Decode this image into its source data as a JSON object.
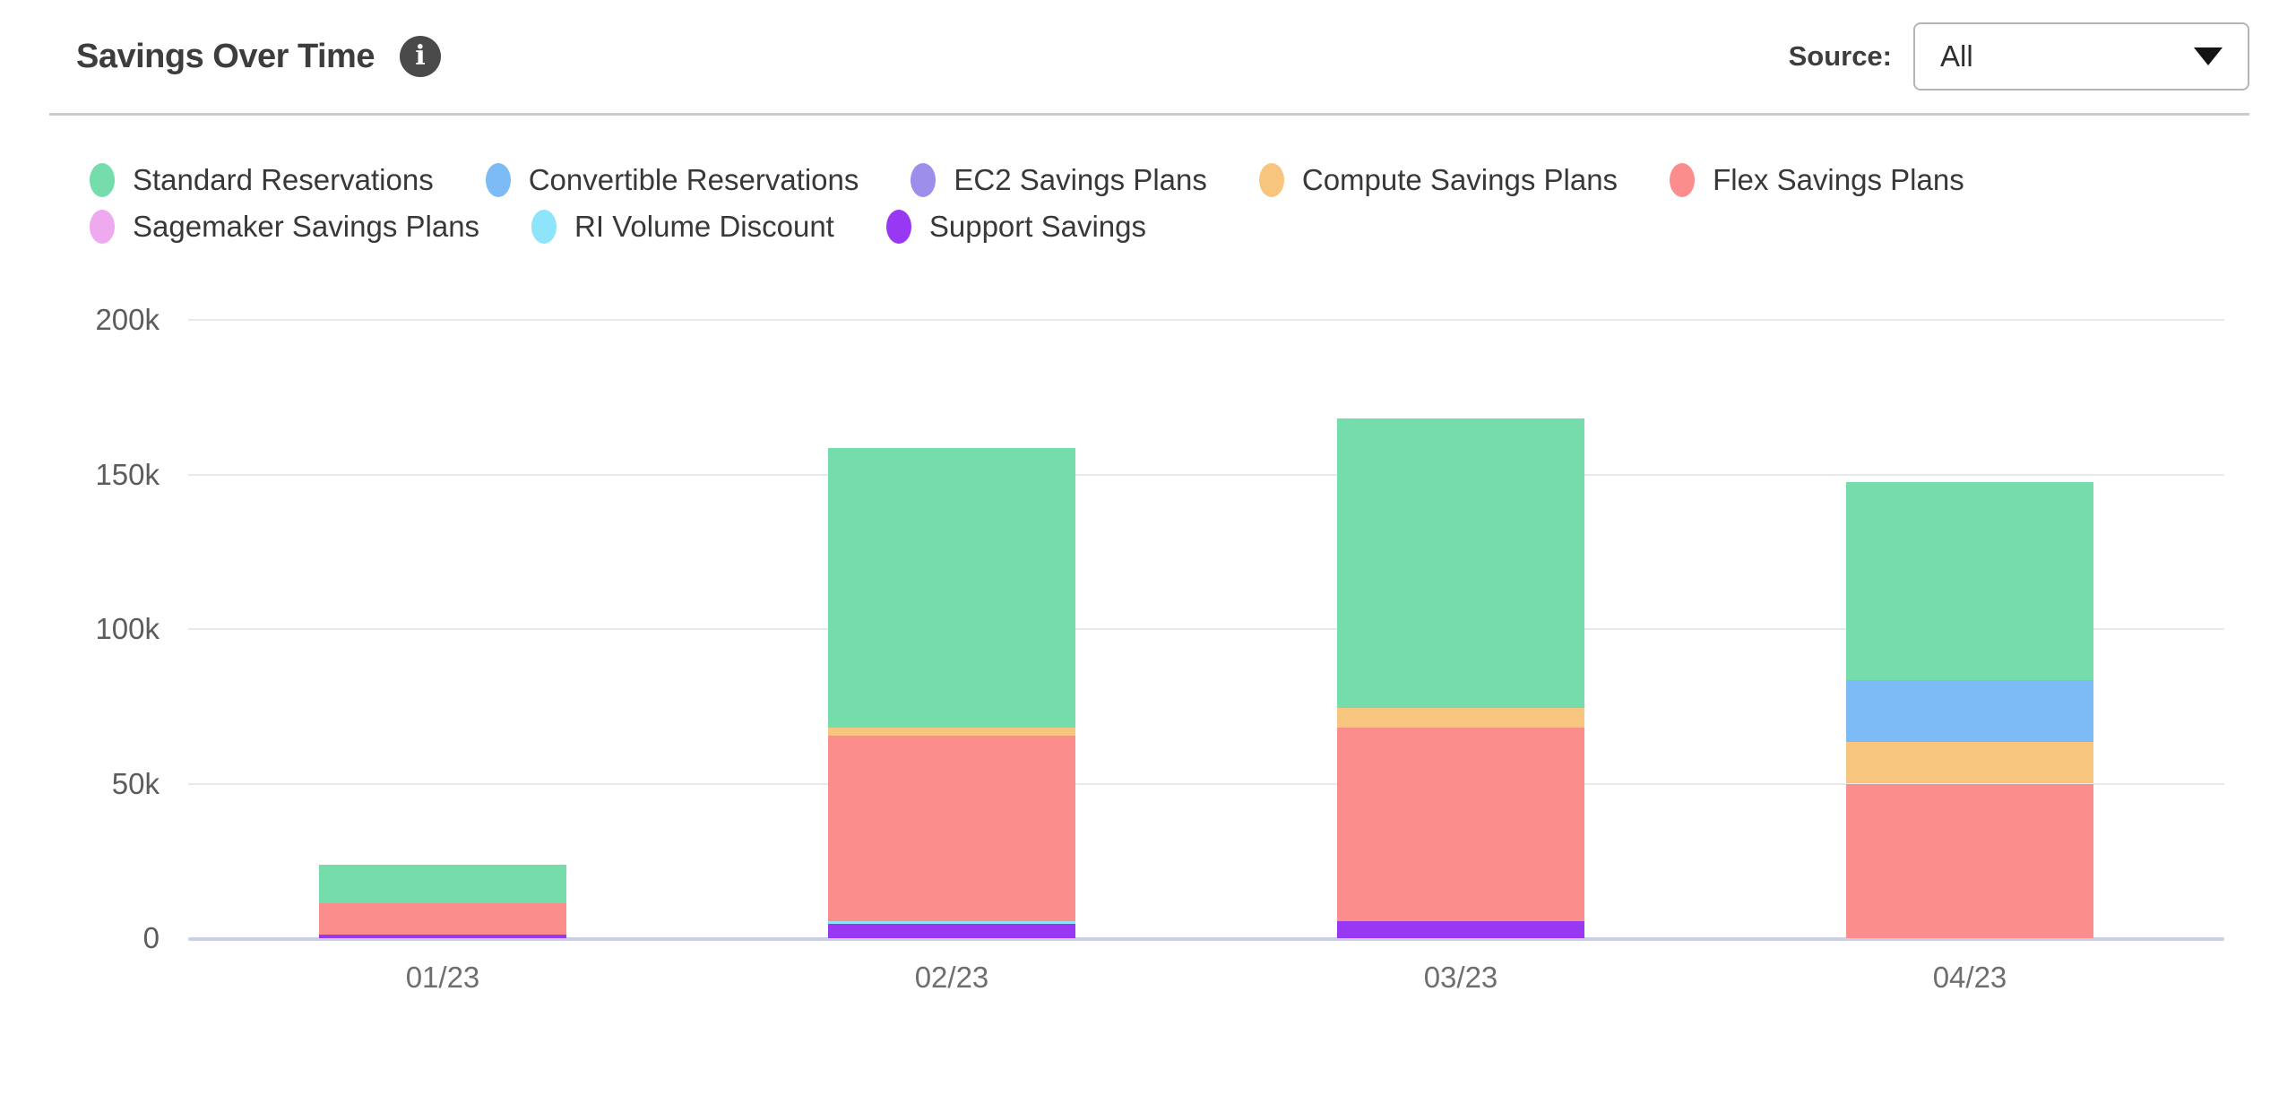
{
  "header": {
    "title": "Savings Over Time",
    "info_glyph": "i",
    "source_label": "Source:",
    "source_value": "All"
  },
  "chart_data": {
    "type": "bar",
    "stacked": true,
    "title": "Savings Over Time",
    "categories": [
      "01/23",
      "02/23",
      "03/23",
      "04/23"
    ],
    "series": [
      {
        "name": "Standard Reservations",
        "color": "#75DCAB",
        "values": [
          12500,
          90500,
          93500,
          64000
        ]
      },
      {
        "name": "Convertible Reservations",
        "color": "#7CBBF6",
        "values": [
          0,
          0,
          0,
          20000
        ]
      },
      {
        "name": "EC2 Savings Plans",
        "color": "#9D8EEB",
        "values": [
          0,
          0,
          0,
          0
        ]
      },
      {
        "name": "Compute Savings Plans",
        "color": "#F8C57E",
        "values": [
          0,
          2500,
          6500,
          13500
        ]
      },
      {
        "name": "Flex Savings Plans",
        "color": "#FB8D8D",
        "values": [
          10000,
          60000,
          62500,
          50000
        ]
      },
      {
        "name": "Sagemaker Savings Plans",
        "color": "#EFA9EF",
        "values": [
          0,
          0,
          0,
          0
        ]
      },
      {
        "name": "RI Volume Discount",
        "color": "#8EE4F8",
        "values": [
          0,
          1000,
          0,
          0
        ]
      },
      {
        "name": "Support Savings",
        "color": "#9838F2",
        "values": [
          1200,
          4500,
          5500,
          0
        ]
      }
    ],
    "stack_order_bottom_to_top": [
      "Support Savings",
      "RI Volume Discount",
      "Sagemaker Savings Plans",
      "Flex Savings Plans",
      "Compute Savings Plans",
      "EC2 Savings Plans",
      "Convertible Reservations",
      "Standard Reservations"
    ],
    "y_ticks": [
      "0",
      "50k",
      "100k",
      "150k",
      "200k"
    ],
    "y_tick_values": [
      0,
      50000,
      100000,
      150000,
      200000
    ],
    "ylim": [
      0,
      200000
    ],
    "grid": true,
    "legend_position": "top"
  }
}
